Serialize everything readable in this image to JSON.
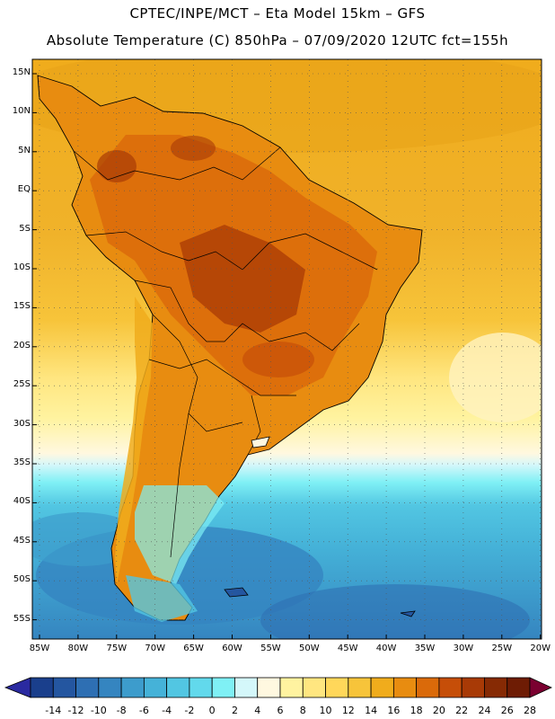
{
  "header": {
    "line1": "CPTEC/INPE/MCT  –    Eta Model 15km – GFS",
    "line2": "Absolute Temperature (C) 850hPa – 07/09/2020 12UTC fct=155h"
  },
  "axes": {
    "lat_labels": [
      "15N",
      "10N",
      "5N",
      "EQ",
      "5S",
      "10S",
      "15S",
      "20S",
      "25S",
      "30S",
      "35S",
      "40S",
      "45S",
      "50S",
      "55S"
    ],
    "lon_labels": [
      "85W",
      "80W",
      "75W",
      "70W",
      "65W",
      "60W",
      "55W",
      "50W",
      "45W",
      "40W",
      "35W",
      "30W",
      "25W",
      "20W"
    ]
  },
  "colorbar": {
    "labels": [
      "-14",
      "-12",
      "-10",
      "-8",
      "-6",
      "-4",
      "-2",
      "0",
      "2",
      "4",
      "6",
      "8",
      "10",
      "12",
      "14",
      "16",
      "18",
      "20",
      "22",
      "24",
      "26",
      "28"
    ],
    "colors": [
      "#1a3f8c",
      "#2456a0",
      "#2e6fb3",
      "#3585c0",
      "#3d9ccc",
      "#45b2d8",
      "#52c6e2",
      "#62d9ec",
      "#7ff0f5",
      "#d4f7fa",
      "#fff8e0",
      "#fff3a0",
      "#ffe680",
      "#ffd75a",
      "#f7c43a",
      "#f0ac1c",
      "#e88c10",
      "#da6a0a",
      "#c64e08",
      "#a83a06",
      "#862a04",
      "#6e1c04"
    ],
    "under_color": "#2a2aa0",
    "over_color": "#7a0030"
  }
}
